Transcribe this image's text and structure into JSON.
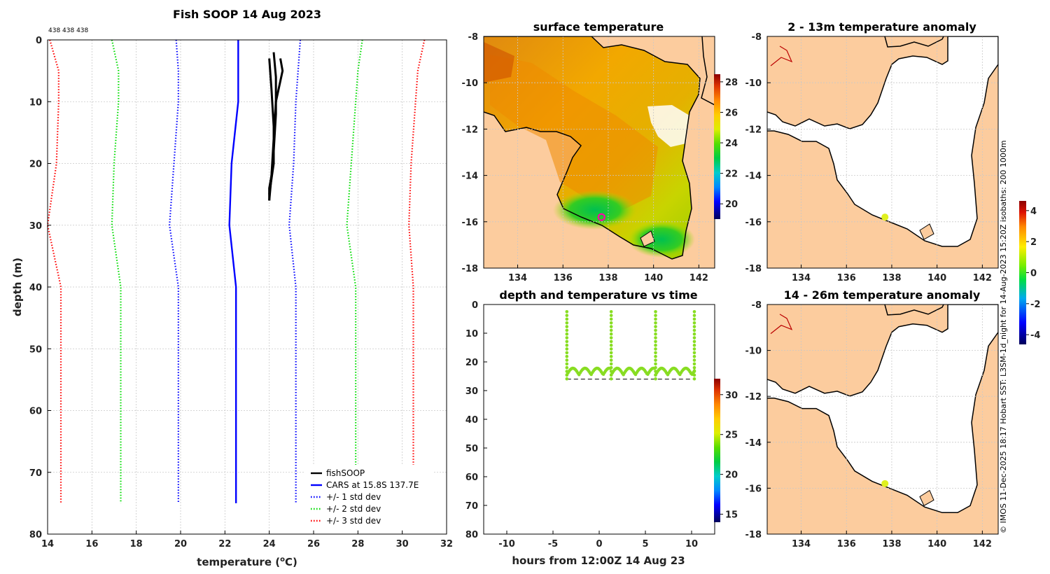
{
  "chart_data": [
    {
      "type": "line",
      "title": "Fish SOOP 14 Aug 2023",
      "corner_label": "438 438 438",
      "xlabel": "temperature (°C)",
      "xlabel_main": "temperature (",
      "xlabel_deg": "o",
      "xlabel_end": "C)",
      "ylabel": "depth (m)",
      "xlim": [
        14,
        32
      ],
      "ylim": [
        0,
        80
      ],
      "xticks": [
        14,
        16,
        18,
        20,
        22,
        24,
        26,
        28,
        30,
        32
      ],
      "yticks": [
        0,
        10,
        20,
        30,
        40,
        50,
        60,
        70,
        80
      ],
      "depth": [
        0,
        5,
        10,
        20,
        30,
        40,
        75
      ],
      "series": [
        {
          "name": "+/- 3 std dev",
          "color": "#ff0000",
          "dotted": true,
          "x": [
            14.1,
            14.5,
            14.5,
            14.4,
            14.0,
            14.6,
            14.6
          ]
        },
        {
          "name": "+/- 3 std dev",
          "color": "#ff0000",
          "dotted": true,
          "x": [
            31.0,
            30.7,
            30.6,
            30.4,
            30.3,
            30.5,
            30.5
          ]
        },
        {
          "name": "+/- 2 std dev",
          "color": "#00dd00",
          "dotted": true,
          "x": [
            16.9,
            17.2,
            17.2,
            17.0,
            16.9,
            17.3,
            17.3
          ]
        },
        {
          "name": "+/- 2 std dev",
          "color": "#00dd00",
          "dotted": true,
          "x": [
            28.2,
            28.0,
            27.9,
            27.7,
            27.5,
            27.9,
            27.9
          ]
        },
        {
          "name": "+/- 1 std dev",
          "color": "#0000ff",
          "dotted": true,
          "x": [
            19.8,
            19.9,
            19.9,
            19.7,
            19.5,
            19.9,
            19.9
          ]
        },
        {
          "name": "+/- 1 std dev",
          "color": "#0000ff",
          "dotted": true,
          "x": [
            25.4,
            25.3,
            25.2,
            25.1,
            24.9,
            25.2,
            25.2
          ]
        },
        {
          "name": "CARS at 15.8S 137.7E",
          "color": "#0000ff",
          "dotted": false,
          "x": [
            22.6,
            22.6,
            22.6,
            22.3,
            22.2,
            22.5,
            22.5
          ]
        }
      ],
      "fish_profiles": [
        {
          "x": [
            24.2,
            24.3,
            24.3,
            24.2,
            24.1,
            24.0,
            24.0
          ],
          "y": [
            2,
            6,
            12,
            18,
            22,
            24,
            26
          ]
        },
        {
          "x": [
            24.5,
            24.6,
            24.3,
            24.2,
            24.1,
            24.0
          ],
          "y": [
            3,
            5,
            10,
            16,
            22,
            26
          ]
        },
        {
          "x": [
            24.0,
            24.1,
            24.2,
            24.2,
            24.0
          ],
          "y": [
            3,
            8,
            14,
            20,
            25
          ]
        }
      ],
      "legend": [
        {
          "label": "fishSOOP",
          "color": "#000000",
          "dotted": false
        },
        {
          "label": "CARS at 15.8S 137.7E",
          "color": "#0000ff",
          "dotted": false
        },
        {
          "label": "+/- 1 std dev",
          "color": "#0000ff",
          "dotted": true
        },
        {
          "label": "+/- 2 std dev",
          "color": "#00dd00",
          "dotted": true
        },
        {
          "label": "+/- 3 std dev",
          "color": "#ff0000",
          "dotted": true
        }
      ]
    },
    {
      "type": "heatmap",
      "title": "surface temperature",
      "xticks": [
        134,
        136,
        138,
        140,
        142
      ],
      "yticks": [
        -8,
        -10,
        -12,
        -14,
        -16,
        -18
      ],
      "xlim": [
        132.5,
        142.7
      ],
      "ylim": [
        -18,
        -8
      ],
      "colorbar_ticks": [
        20,
        22,
        24,
        26,
        28
      ],
      "colorbar_range": [
        19,
        28.5
      ],
      "marker": {
        "lon": 137.7,
        "lat": -15.8
      }
    },
    {
      "type": "scatter",
      "title": "depth and temperature vs time",
      "xlabel": "hours from 12:00Z 14 Aug 23",
      "xticks": [
        -10,
        -5,
        0,
        5,
        10
      ],
      "yticks": [
        0,
        10,
        20,
        30,
        40,
        50,
        60,
        70,
        80
      ],
      "xlim": [
        -12.5,
        12.5
      ],
      "ylim": [
        0,
        80
      ],
      "colorbar_ticks": [
        15,
        20,
        25,
        30
      ],
      "colorbar_range": [
        14,
        32
      ],
      "dive_bottom_depth": 26,
      "casts_hours": [
        -3.5,
        1.3,
        6.1,
        10.3
      ],
      "point_temperature": 24.2
    },
    {
      "type": "heatmap",
      "title": "2 - 13m temperature anomaly",
      "xticks": [
        134,
        136,
        138,
        140,
        142
      ],
      "yticks": [
        -8,
        -10,
        -12,
        -14,
        -16,
        -18
      ],
      "marker": {
        "lon": 137.7,
        "lat": -15.8
      }
    },
    {
      "type": "heatmap",
      "title": "14 - 26m temperature anomaly",
      "xticks": [
        134,
        136,
        138,
        140,
        142
      ],
      "yticks": [
        -8,
        -10,
        -12,
        -14,
        -16,
        -18
      ],
      "marker": {
        "lon": 137.7,
        "lat": -15.8
      },
      "colorbar_ticks": [
        4,
        2,
        0,
        -2,
        -4
      ]
    }
  ],
  "credit": "© IMOS 11-Dec-2025 18:17 Hobart SST: L3SM-1d_night for 14-Aug-2023 15:20Z isobaths: 200  1000m",
  "colors": {
    "land": "#fccc9e",
    "sst_cmap": [
      "#00005a",
      "#0000ff",
      "#0088ff",
      "#00cccc",
      "#00cc44",
      "#33dd00",
      "#aadd00",
      "#ffee00",
      "#ffaa00",
      "#ff6600",
      "#cc2200",
      "#8b0000"
    ],
    "anom_cmap": [
      "#00005a",
      "#0000ff",
      "#00aaee",
      "#00dd44",
      "#77ee00",
      "#ffee00",
      "#ff8800",
      "#dd1100",
      "#8b0000"
    ],
    "cast_color": "#88dd22",
    "marker_color": "#e0f020"
  }
}
